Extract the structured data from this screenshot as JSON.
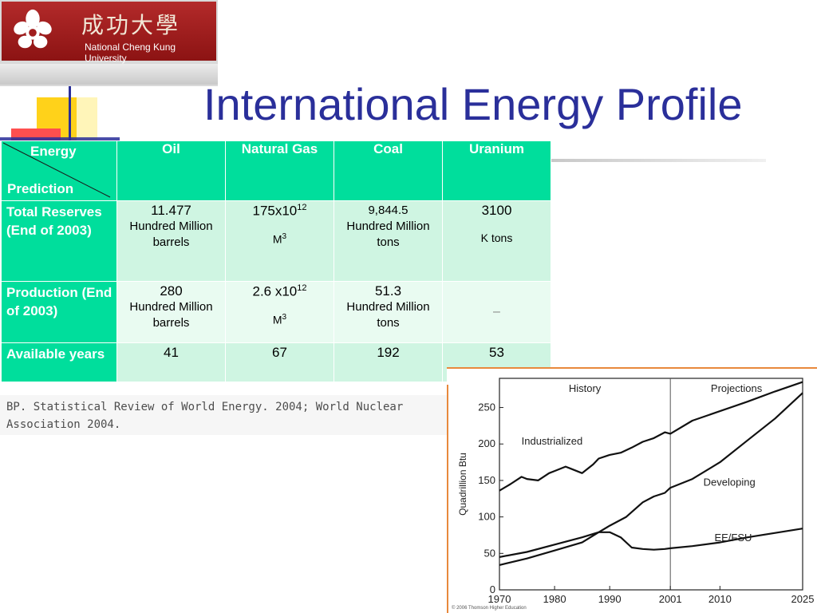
{
  "logo": {
    "chinese": "成功大學",
    "english": "National Cheng Kung University"
  },
  "title": "International Energy Profile",
  "table": {
    "corner_top": "Energy",
    "corner_bottom": "Prediction",
    "columns": [
      "Oil",
      "Natural Gas",
      "Coal",
      "Uranium"
    ],
    "rows": [
      {
        "label": "Total Reserves (End of 2003)",
        "cells": [
          {
            "value": "11.477",
            "unit": "Hundred Million barrels"
          },
          {
            "base": "175x10",
            "exp": "12",
            "unit_base": "M",
            "unit_exp": "3"
          },
          {
            "value": "9,844.5",
            "unit": "Hundred Million tons"
          },
          {
            "value": "3100",
            "unit": "K tons"
          }
        ]
      },
      {
        "label": "Production (End of 2003)",
        "cells": [
          {
            "value": "280",
            "unit": "Hundred Million barrels"
          },
          {
            "base": "2.6 x10",
            "exp": "12",
            "unit_base": "M",
            "unit_exp": "3"
          },
          {
            "value": "51.3",
            "unit": "Hundred Million tons"
          },
          {
            "value": "–"
          }
        ]
      },
      {
        "label": "Available years",
        "cells": [
          {
            "value": "41"
          },
          {
            "value": "67"
          },
          {
            "value": "192"
          },
          {
            "value": "53"
          }
        ]
      }
    ]
  },
  "source": "BP. Statistical Review of World Energy. 2004; World Nuclear Association 2004.",
  "chart_data": {
    "type": "line",
    "ylabel": "Quadrillion Btu",
    "xlabel": "",
    "xlim": [
      1970,
      2025
    ],
    "ylim": [
      0,
      290
    ],
    "x_ticks": [
      "1970",
      "1980",
      "1990",
      "2001",
      "2010",
      "2025"
    ],
    "y_ticks": [
      "0",
      "50",
      "100",
      "150",
      "200",
      "250"
    ],
    "divider_x": 2001,
    "regions": [
      "History",
      "Projections"
    ],
    "series": [
      {
        "name": "Industrialized",
        "x": [
          1970,
          1972,
          1974,
          1975,
          1977,
          1979,
          1980,
          1982,
          1983,
          1985,
          1987,
          1988,
          1990,
          1992,
          1994,
          1996,
          1998,
          2000,
          2001,
          2005,
          2010,
          2015,
          2020,
          2025
        ],
        "y": [
          136,
          145,
          155,
          152,
          150,
          160,
          163,
          169,
          166,
          160,
          172,
          180,
          185,
          188,
          195,
          203,
          208,
          216,
          214,
          232,
          245,
          258,
          272,
          285
        ]
      },
      {
        "name": "Developing",
        "x": [
          1970,
          1975,
          1980,
          1985,
          1988,
          1990,
          1993,
          1996,
          1998,
          2000,
          2001,
          2005,
          2010,
          2015,
          2020,
          2025
        ],
        "y": [
          34,
          43,
          54,
          65,
          79,
          88,
          100,
          120,
          128,
          133,
          140,
          152,
          175,
          205,
          235,
          270
        ]
      },
      {
        "name": "EE/FSU",
        "x": [
          1970,
          1975,
          1980,
          1985,
          1988,
          1990,
          1992,
          1994,
          1996,
          1998,
          2000,
          2001,
          2005,
          2010,
          2015,
          2020,
          2025
        ],
        "y": [
          45,
          52,
          62,
          72,
          79,
          79,
          72,
          58,
          56,
          55,
          56,
          57,
          60,
          65,
          72,
          78,
          84
        ]
      }
    ],
    "credit": "© 2006 Thomson Higher Education"
  }
}
